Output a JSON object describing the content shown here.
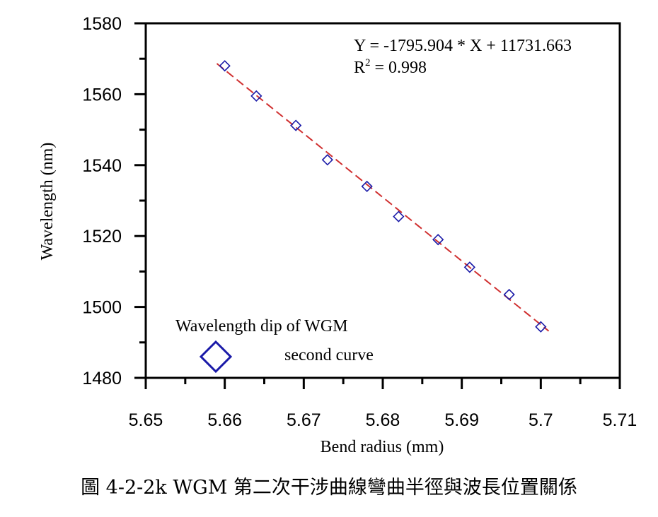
{
  "chart_data": {
    "type": "scatter",
    "xlabel": "Bend radius (mm)",
    "ylabel": "Wavelength (nm)",
    "xlim": [
      5.65,
      5.71
    ],
    "ylim": [
      1480,
      1580
    ],
    "x_ticks": [
      "5.65",
      "5.66",
      "5.67",
      "5.68",
      "5.69",
      "5.7",
      "5.71"
    ],
    "y_ticks": [
      "1480",
      "1500",
      "1520",
      "1540",
      "1560",
      "1580"
    ],
    "series": [
      {
        "name": "Wavelength dip of WGM",
        "marker": "diamond",
        "color": "#1a1aa8",
        "x": [
          5.66,
          5.664,
          5.669,
          5.673,
          5.678,
          5.682,
          5.687,
          5.691,
          5.696,
          5.7
        ],
        "y": [
          1568.0,
          1559.5,
          1551.2,
          1541.5,
          1534.0,
          1525.5,
          1519.0,
          1511.2,
          1503.5,
          1494.4
        ]
      }
    ],
    "fit_line": {
      "slope": -1795.904,
      "intercept": 11731.663,
      "x_range": [
        5.659,
        5.701
      ],
      "color": "#d03030",
      "dash": true
    },
    "annotations": {
      "equation": "Y = -1795.904 * X + 11731.663",
      "r2_prefix": "R",
      "r2_sup": "2",
      "r2_suffix": " = 0.998"
    },
    "legend": {
      "title": "Wavelength dip of WGM",
      "entry": "second curve",
      "placement": "bottom-left"
    },
    "grid": false
  },
  "caption": "圖 4-2-2k WGM 第二次干涉曲線彎曲半徑與波長位置關係"
}
